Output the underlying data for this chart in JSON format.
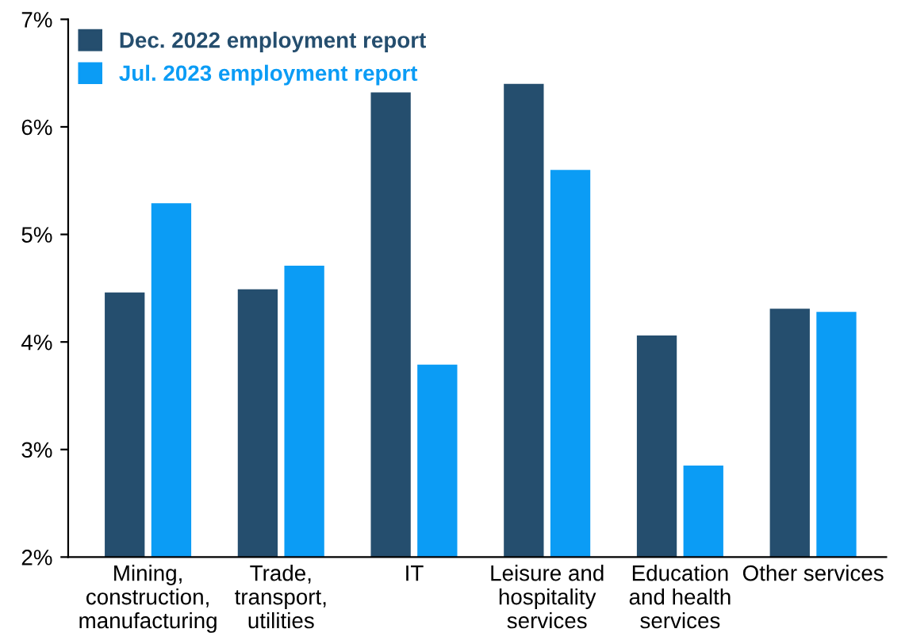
{
  "chart_data": {
    "type": "bar",
    "categories": [
      "Mining,\nconstruction,\nmanufacturing",
      "Trade,\ntransport,\nutilities",
      "IT",
      "Leisure and\nhospitality\nservices",
      "Education\nand health\nservices",
      "Other services"
    ],
    "series": [
      {
        "name": "Dec. 2022 employment report",
        "color": "#254e6e",
        "values": [
          4.46,
          4.49,
          6.32,
          6.4,
          4.06,
          4.31
        ]
      },
      {
        "name": "Jul. 2023 employment report",
        "color": "#0b9cf5",
        "values": [
          5.29,
          4.71,
          3.79,
          5.6,
          2.85,
          4.28
        ]
      }
    ],
    "ylim": [
      2,
      7
    ],
    "yticks": [
      {
        "value": 2,
        "label": "2%"
      },
      {
        "value": 3,
        "label": "3%"
      },
      {
        "value": 4,
        "label": "4%"
      },
      {
        "value": 5,
        "label": "5%"
      },
      {
        "value": 6,
        "label": "6%"
      },
      {
        "value": 7,
        "label": "7%"
      }
    ],
    "legend": "top left",
    "grid": false
  }
}
